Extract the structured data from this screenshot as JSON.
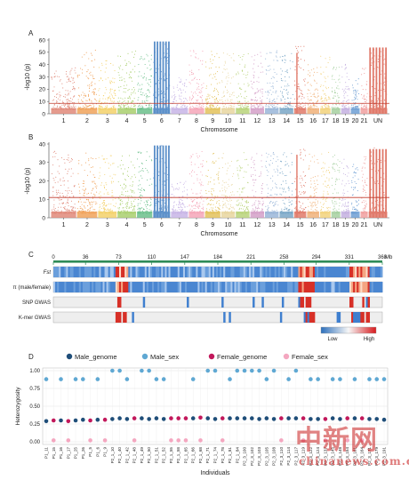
{
  "panels": {
    "A": "A",
    "B": "B",
    "C": "C",
    "D": "D"
  },
  "chart_data": [
    {
      "id": "A",
      "type": "scatter",
      "ylabel": "-log10 (p)",
      "xlabel": "Chromosome",
      "ylim": [
        0,
        60
      ],
      "yticks": [
        0,
        10,
        20,
        30,
        40,
        50,
        60
      ],
      "threshold": 8.5,
      "threshold_color": "#c0392b",
      "categories": [
        "1",
        "2",
        "3",
        "4",
        "5",
        "6",
        "7",
        "8",
        "9",
        "10",
        "11",
        "12",
        "13",
        "14",
        "15",
        "16",
        "17",
        "18",
        "19",
        "20",
        "21",
        "UN"
      ],
      "chrom_widths": [
        1.6,
        1.3,
        1.2,
        1.2,
        1.0,
        1.1,
        1.1,
        1.0,
        1.0,
        0.9,
        0.9,
        0.9,
        0.9,
        0.9,
        0.8,
        0.8,
        0.7,
        0.6,
        0.6,
        0.6,
        0.5,
        1.2
      ],
      "chrom_colors": [
        "#e0897a",
        "#f0a35c",
        "#f3d16b",
        "#a9cf6e",
        "#6cc08c",
        "#5b8fc9",
        "#c8b5e6",
        "#f4a6b8",
        "#e3c25c",
        "#e8d6a0",
        "#b9d37a",
        "#d4a0c8",
        "#9ab6d8",
        "#7aa7c7",
        "#e07a6a",
        "#f0b27a",
        "#f2d27b",
        "#a6d0a0",
        "#c4b0e0",
        "#6f9fd4",
        "#f0a0a0",
        "#e0796a"
      ],
      "peaks": [
        [
          1,
          38
        ],
        [
          2,
          52
        ],
        [
          3,
          45
        ],
        [
          4,
          52
        ],
        [
          5,
          50
        ],
        [
          6,
          60
        ],
        [
          7,
          30
        ],
        [
          8,
          52
        ],
        [
          9,
          52
        ],
        [
          10,
          50
        ],
        [
          11,
          52
        ],
        [
          12,
          50
        ],
        [
          13,
          52
        ],
        [
          14,
          52
        ],
        [
          15,
          55
        ],
        [
          16,
          40
        ],
        [
          17,
          48
        ],
        [
          18,
          38
        ],
        [
          19,
          42
        ],
        [
          20,
          30
        ],
        [
          21,
          38
        ],
        [
          22,
          55
        ]
      ]
    },
    {
      "id": "B",
      "type": "scatter",
      "ylabel": "-log10 (p)",
      "xlabel": "Chromosome",
      "ylim": [
        0,
        40
      ],
      "yticks": [
        0,
        10,
        20,
        30,
        40
      ],
      "threshold": 11,
      "threshold_color": "#c0392b",
      "categories": [
        "1",
        "2",
        "3",
        "4",
        "5",
        "6",
        "7",
        "8",
        "9",
        "10",
        "11",
        "12",
        "13",
        "14",
        "15",
        "16",
        "17",
        "18",
        "19",
        "20",
        "21",
        "UN"
      ],
      "peaks": [
        [
          1,
          36
        ],
        [
          2,
          36
        ],
        [
          3,
          35
        ],
        [
          4,
          36
        ],
        [
          5,
          36
        ],
        [
          6,
          40
        ],
        [
          7,
          20
        ],
        [
          8,
          36
        ],
        [
          9,
          36
        ],
        [
          10,
          36
        ],
        [
          11,
          36
        ],
        [
          12,
          36
        ],
        [
          13,
          36
        ],
        [
          14,
          36
        ],
        [
          15,
          38
        ],
        [
          16,
          35
        ],
        [
          17,
          36
        ],
        [
          18,
          35
        ],
        [
          19,
          35
        ],
        [
          20,
          30
        ],
        [
          21,
          36
        ],
        [
          22,
          38
        ]
      ]
    },
    {
      "id": "C",
      "type": "heatmap",
      "axis_unit": "Mb",
      "axis_ticks": [
        0,
        36,
        73,
        110,
        147,
        184,
        221,
        258,
        294,
        331,
        368
      ],
      "axis_max": 368,
      "rows": [
        "Fst",
        "π (male/female)",
        "SNP GWAS",
        "K-mer GWAS"
      ],
      "legend_low": "Low",
      "legend_high": "High",
      "hot_regions_mb": [
        [
          68,
          82
        ],
        [
          272,
          292
        ],
        [
          330,
          352
        ]
      ]
    },
    {
      "id": "D",
      "type": "scatter",
      "ylabel": "Heterozygosity",
      "xlabel": "Individuals",
      "ylim": [
        0,
        1
      ],
      "yticks": [
        "0.00",
        "0.25",
        "0.50",
        "0.75",
        "1.00"
      ],
      "series": [
        {
          "name": "Male_genome",
          "color": "#1f4e79"
        },
        {
          "name": "Male_sex",
          "color": "#5fa8d3"
        },
        {
          "name": "Female_genome",
          "color": "#c2185b"
        },
        {
          "name": "Female_sex",
          "color": "#f4a7c0"
        }
      ],
      "categories": [
        "P1_11",
        "P1_15",
        "P1_16",
        "P1_17",
        "P1_25",
        "P1_26",
        "P1_5",
        "P1_6",
        "P1_9",
        "P2_1_10",
        "P2_1_40",
        "P2_1_42",
        "P2_1_48",
        "P2_1_49",
        "P2_1_50",
        "P2_1_51",
        "P2_1_52",
        "P2_1_55",
        "P2_1_58",
        "P2_1_65",
        "P2_1_66",
        "P2_1_68",
        "P2_1_71",
        "P2_1_74",
        "P2_1_78",
        "P2_1_81",
        "P2_1_84",
        "P2_3_100",
        "P2_3_102",
        "P2_3_103",
        "P2_3_105",
        "P2_3_108",
        "P2_3_110",
        "P2_3_114",
        "P2_3_117",
        "P2_3_119",
        "P2_3_122",
        "P2_3_124",
        "P2_3_137",
        "P2_3_145",
        "P2_3_148",
        "P2_3_154",
        "P2_3_161",
        "P2_3_164",
        "P2_3_171",
        "P2_3_179",
        "P2_3_191"
      ],
      "sex": [
        "M",
        "F",
        "M",
        "F",
        "M",
        "M",
        "F",
        "M",
        "F",
        "M",
        "M",
        "M",
        "F",
        "M",
        "M",
        "M",
        "M",
        "F",
        "F",
        "F",
        "M",
        "F",
        "M",
        "M",
        "F",
        "M",
        "M",
        "M",
        "M",
        "M",
        "M",
        "M",
        "F",
        "M",
        "M",
        "F",
        "M",
        "M",
        "F",
        "M",
        "M",
        "F",
        "M",
        "F",
        "M",
        "M",
        "M"
      ],
      "genome_values": [
        0.29,
        0.3,
        0.3,
        0.29,
        0.3,
        0.31,
        0.3,
        0.31,
        0.31,
        0.32,
        0.33,
        0.32,
        0.33,
        0.33,
        0.32,
        0.33,
        0.32,
        0.33,
        0.33,
        0.33,
        0.33,
        0.34,
        0.33,
        0.32,
        0.33,
        0.33,
        0.33,
        0.33,
        0.33,
        0.32,
        0.33,
        0.32,
        0.33,
        0.33,
        0.33,
        0.33,
        0.32,
        0.32,
        0.32,
        0.33,
        0.32,
        0.33,
        0.33,
        0.33,
        0.32,
        0.32,
        0.31
      ],
      "sex_values": [
        0.88,
        0.02,
        0.88,
        0.02,
        0.88,
        0.88,
        0.02,
        0.88,
        0.02,
        1.0,
        1.0,
        0.88,
        0.02,
        1.0,
        1.0,
        0.88,
        0.88,
        0.02,
        0.02,
        0.02,
        0.88,
        0.02,
        1.0,
        1.0,
        0.02,
        0.88,
        1.0,
        1.0,
        1.0,
        1.0,
        0.88,
        1.0,
        0.02,
        0.88,
        1.0,
        0.02,
        0.88,
        0.88,
        0.02,
        0.88,
        0.88,
        0.02,
        0.88,
        0.02,
        0.88,
        0.88,
        0.88
      ]
    }
  ],
  "watermark": {
    "cn": "中新网",
    "en": "chinanews.com.cn"
  }
}
